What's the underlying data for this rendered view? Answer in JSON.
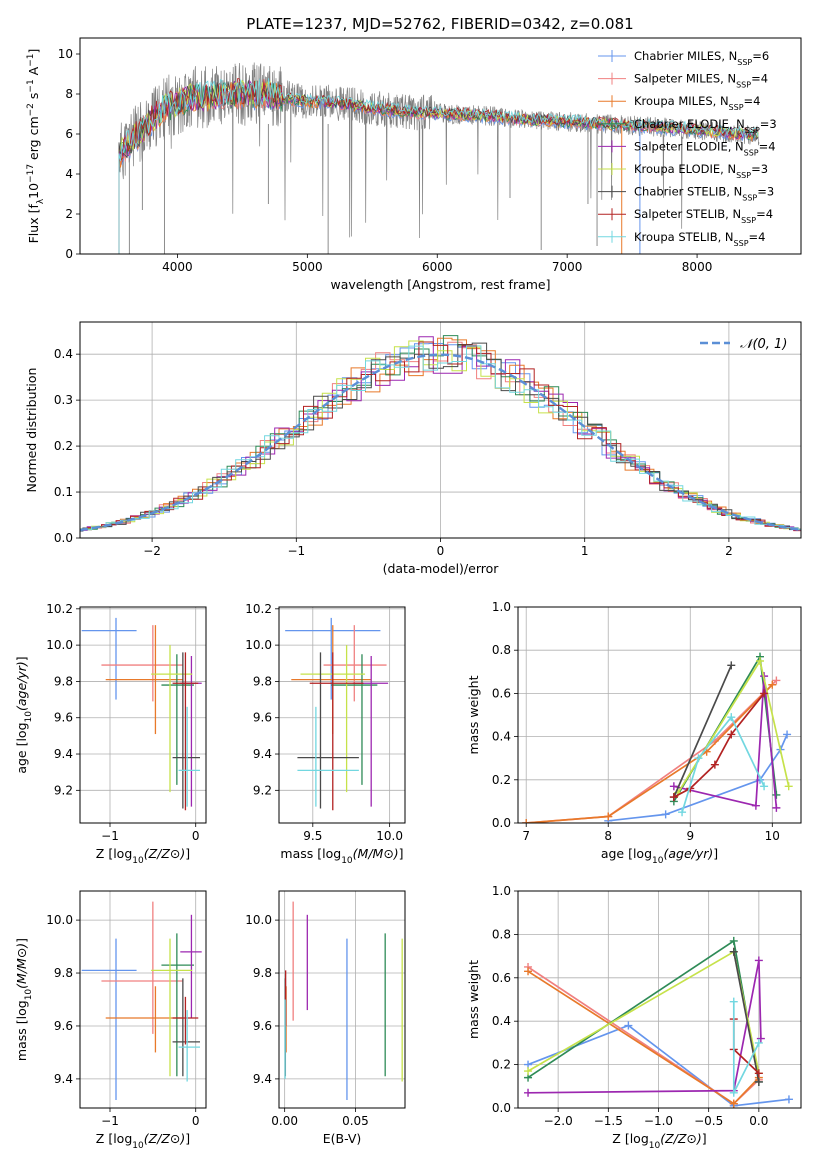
{
  "figure": {
    "title": "PLATE=1237, MJD=52762, FIBERID=0342, z=0.081"
  },
  "colors": {
    "Chabrier MILES": "#6495ed",
    "Salpeter MILES": "#f08080",
    "Kroupa MILES": "#e8792a",
    "Chabrier ELODIE": "#2e8b57",
    "Salpeter ELODIE": "#9c27b0",
    "Kroupa ELODIE": "#c6e24a",
    "Chabrier STELIB": "#4a4a4a",
    "Salpeter STELIB": "#b22222",
    "Kroupa STELIB": "#72d7e0",
    "observed": "#808080",
    "gaussian": "#5b8fd6"
  },
  "chart_data": [
    {
      "id": "spectrum",
      "type": "line",
      "xlabel": "wavelength [Angstrom, rest frame]",
      "ylabel": "Flux [f_λ10^−17 erg cm^−2 s^−1 A^−1]",
      "xlim": [
        3250,
        8800
      ],
      "ylim": [
        0,
        10.8
      ],
      "xticks": [
        4000,
        5000,
        6000,
        7000,
        8000
      ],
      "yticks": [
        0,
        2,
        4,
        6,
        8,
        10
      ],
      "grid": false,
      "legend_position": "top-right",
      "legend": [
        {
          "name": "Chabrier MILES",
          "nssp": "6"
        },
        {
          "name": "Salpeter MILES",
          "nssp": "4"
        },
        {
          "name": "Kroupa MILES",
          "nssp": "4"
        },
        {
          "name": "Chabrier ELODIE",
          "nssp": "3"
        },
        {
          "name": "Salpeter ELODIE",
          "nssp": "4"
        },
        {
          "name": "Kroupa ELODIE",
          "nssp": "3"
        },
        {
          "name": "Chabrier STELIB",
          "nssp": "3"
        },
        {
          "name": "Salpeter STELIB",
          "nssp": "4"
        },
        {
          "name": "Kroupa STELIB",
          "nssp": "4"
        }
      ],
      "continuum": [
        [
          3550,
          5.0
        ],
        [
          3700,
          6.0
        ],
        [
          3900,
          7.3
        ],
        [
          4100,
          7.8
        ],
        [
          4300,
          7.9
        ],
        [
          4500,
          8.0
        ],
        [
          4700,
          8.0
        ],
        [
          4900,
          7.7
        ],
        [
          5100,
          7.6
        ],
        [
          5300,
          7.5
        ],
        [
          5500,
          7.3
        ],
        [
          5800,
          7.1
        ],
        [
          6100,
          7.0
        ],
        [
          6400,
          6.9
        ],
        [
          6700,
          6.7
        ],
        [
          7000,
          6.6
        ],
        [
          7300,
          6.5
        ],
        [
          7600,
          6.4
        ],
        [
          8000,
          6.2
        ],
        [
          8500,
          5.9
        ]
      ]
    },
    {
      "id": "residuals",
      "type": "histogram",
      "xlabel": "(data-model)/error",
      "ylabel": "Normed distribution",
      "xlim": [
        -2.5,
        2.5
      ],
      "ylim": [
        0,
        0.47
      ],
      "xticks": [
        -2,
        -1,
        0,
        1,
        2
      ],
      "yticks": [
        0.0,
        0.1,
        0.2,
        0.3,
        0.4
      ],
      "grid": true,
      "legend_position": "top-right",
      "legend": [
        "𝒩(0, 1)"
      ],
      "bin_width": 0.1,
      "gaussian": {
        "mean": 0,
        "sigma": 1
      }
    },
    {
      "id": "age-vs-Z",
      "type": "errorbar",
      "xlabel": "Z [log10(Z/Z⊙)]",
      "ylabel": "age [log10(age/yr)]",
      "xlim": [
        -1.35,
        0.12
      ],
      "ylim": [
        9.02,
        10.21
      ],
      "xticks": [
        -1,
        0
      ],
      "yticks": [
        9.2,
        9.4,
        9.6,
        9.8,
        10.0,
        10.2
      ],
      "points": [
        {
          "model": "Chabrier MILES",
          "x": -0.93,
          "y": 10.08,
          "xerr": [
            0.4,
            0.24
          ],
          "yerr": [
            0.38,
            0.07
          ]
        },
        {
          "model": "Salpeter MILES",
          "x": -0.5,
          "y": 9.89,
          "xerr": [
            0.6,
            0.35
          ],
          "yerr": [
            0.2,
            0.22
          ]
        },
        {
          "model": "Kroupa MILES",
          "x": -0.47,
          "y": 9.81,
          "xerr": [
            0.58,
            0.32
          ],
          "yerr": [
            0.3,
            0.3
          ]
        },
        {
          "model": "Chabrier ELODIE",
          "x": -0.22,
          "y": 9.78,
          "xerr": [
            0.18,
            0.2
          ],
          "yerr": [
            0.55,
            0.17
          ]
        },
        {
          "model": "Salpeter ELODIE",
          "x": -0.05,
          "y": 9.79,
          "xerr": [
            0.13,
            0.12
          ],
          "yerr": [
            0.68,
            0.15
          ]
        },
        {
          "model": "Kroupa ELODIE",
          "x": -0.3,
          "y": 9.84,
          "xerr": [
            0.22,
            0.26
          ],
          "yerr": [
            0.65,
            0.16
          ]
        },
        {
          "model": "Chabrier STELIB",
          "x": -0.15,
          "y": 9.38,
          "xerr": [
            0.12,
            0.2
          ],
          "yerr": [
            0.28,
            0.58
          ]
        },
        {
          "model": "Salpeter STELIB",
          "x": -0.12,
          "y": 9.79,
          "xerr": [
            0.15,
            0.15
          ],
          "yerr": [
            0.7,
            0.17
          ]
        },
        {
          "model": "Kroupa STELIB",
          "x": -0.1,
          "y": 9.31,
          "xerr": [
            0.1,
            0.15
          ],
          "yerr": [
            0.2,
            0.35
          ]
        }
      ]
    },
    {
      "id": "age-vs-mass",
      "type": "errorbar",
      "xlabel": "mass [log10(M/M⊙)]",
      "ylabel": "",
      "xlim": [
        9.28,
        10.1
      ],
      "ylim": [
        9.02,
        10.21
      ],
      "xticks": [
        9.5,
        10.0
      ],
      "yticks": [
        9.2,
        9.4,
        9.6,
        9.8,
        10.0,
        10.2
      ],
      "points": [
        {
          "model": "Chabrier MILES",
          "x": 9.62,
          "y": 10.08,
          "xerr": [
            0.3,
            0.32
          ],
          "yerr": [
            0.38,
            0.07
          ]
        },
        {
          "model": "Salpeter MILES",
          "x": 9.77,
          "y": 9.89,
          "xerr": [
            0.2,
            0.21
          ],
          "yerr": [
            0.2,
            0.22
          ]
        },
        {
          "model": "Kroupa MILES",
          "x": 9.63,
          "y": 9.81,
          "xerr": [
            0.27,
            0.25
          ],
          "yerr": [
            0.3,
            0.3
          ]
        },
        {
          "model": "Chabrier ELODIE",
          "x": 9.82,
          "y": 9.78,
          "xerr": [
            0.2,
            0.1
          ],
          "yerr": [
            0.55,
            0.17
          ]
        },
        {
          "model": "Salpeter ELODIE",
          "x": 9.88,
          "y": 9.79,
          "xerr": [
            0.12,
            0.11
          ],
          "yerr": [
            0.68,
            0.15
          ]
        },
        {
          "model": "Kroupa ELODIE",
          "x": 9.72,
          "y": 9.84,
          "xerr": [
            0.3,
            0.12
          ],
          "yerr": [
            0.65,
            0.16
          ]
        },
        {
          "model": "Chabrier STELIB",
          "x": 9.55,
          "y": 9.38,
          "xerr": [
            0.15,
            0.25
          ],
          "yerr": [
            0.28,
            0.58
          ]
        },
        {
          "model": "Salpeter STELIB",
          "x": 9.63,
          "y": 9.79,
          "xerr": [
            0.15,
            0.2
          ],
          "yerr": [
            0.7,
            0.17
          ]
        },
        {
          "model": "Kroupa STELIB",
          "x": 9.52,
          "y": 9.31,
          "xerr": [
            0.12,
            0.28
          ],
          "yerr": [
            0.2,
            0.35
          ]
        }
      ]
    },
    {
      "id": "weight-vs-age",
      "type": "line",
      "xlabel": "age [log10(age/yr)]",
      "ylabel": "mass weight",
      "xlim": [
        6.9,
        10.35
      ],
      "ylim": [
        0,
        1.0
      ],
      "xticks": [
        7,
        8,
        9,
        10
      ],
      "yticks": [
        0.0,
        0.2,
        0.4,
        0.6,
        0.8,
        1.0
      ],
      "series": [
        {
          "model": "Chabrier MILES",
          "points": [
            [
              8.0,
              0.01
            ],
            [
              8.7,
              0.04
            ],
            [
              9.85,
              0.2
            ],
            [
              10.1,
              0.34
            ],
            [
              10.18,
              0.41
            ]
          ]
        },
        {
          "model": "Salpeter MILES",
          "points": [
            [
              7.0,
              0.0
            ],
            [
              8.0,
              0.03
            ],
            [
              9.3,
              0.38
            ],
            [
              10.05,
              0.66
            ]
          ]
        },
        {
          "model": "Kroupa MILES",
          "points": [
            [
              7.0,
              0.0
            ],
            [
              8.0,
              0.03
            ],
            [
              9.2,
              0.33
            ],
            [
              10.0,
              0.64
            ]
          ]
        },
        {
          "model": "Chabrier ELODIE",
          "points": [
            [
              8.8,
              0.1
            ],
            [
              9.85,
              0.77
            ],
            [
              10.05,
              0.13
            ]
          ]
        },
        {
          "model": "Salpeter ELODIE",
          "points": [
            [
              8.8,
              0.17
            ],
            [
              9.8,
              0.08
            ],
            [
              9.9,
              0.68
            ],
            [
              10.05,
              0.07
            ]
          ]
        },
        {
          "model": "Kroupa ELODIE",
          "points": [
            [
              8.85,
              0.14
            ],
            [
              9.85,
              0.75
            ],
            [
              10.2,
              0.17
            ]
          ]
        },
        {
          "model": "Chabrier STELIB",
          "points": [
            [
              8.8,
              0.12
            ],
            [
              9.5,
              0.73
            ]
          ]
        },
        {
          "model": "Salpeter STELIB",
          "points": [
            [
              8.8,
              0.12
            ],
            [
              9.0,
              0.16
            ],
            [
              9.3,
              0.27
            ],
            [
              9.5,
              0.41
            ],
            [
              9.9,
              0.6
            ]
          ]
        },
        {
          "model": "Kroupa STELIB",
          "points": [
            [
              8.9,
              0.05
            ],
            [
              9.1,
              0.3
            ],
            [
              9.5,
              0.49
            ],
            [
              9.9,
              0.17
            ]
          ]
        }
      ]
    },
    {
      "id": "mass-vs-Z",
      "type": "errorbar",
      "xlabel": "Z [log10(Z/Z⊙)]",
      "ylabel": "mass [log10(M/M⊙)]",
      "xlim": [
        -1.35,
        0.12
      ],
      "ylim": [
        9.29,
        10.11
      ],
      "xticks": [
        -1,
        0
      ],
      "yticks": [
        9.4,
        9.6,
        9.8,
        10.0
      ],
      "points": [
        {
          "model": "Chabrier MILES",
          "x": -0.93,
          "y": 9.81,
          "xerr": [
            0.4,
            0.24
          ],
          "yerr": [
            0.49,
            0.12
          ]
        },
        {
          "model": "Salpeter MILES",
          "x": -0.5,
          "y": 9.77,
          "xerr": [
            0.6,
            0.35
          ],
          "yerr": [
            0.2,
            0.3
          ]
        },
        {
          "model": "Kroupa MILES",
          "x": -0.47,
          "y": 9.63,
          "xerr": [
            0.58,
            0.32
          ],
          "yerr": [
            0.13,
            0.12
          ]
        },
        {
          "model": "Chabrier ELODIE",
          "x": -0.22,
          "y": 9.83,
          "xerr": [
            0.18,
            0.2
          ],
          "yerr": [
            0.42,
            0.12
          ]
        },
        {
          "model": "Salpeter ELODIE",
          "x": -0.05,
          "y": 9.88,
          "xerr": [
            0.13,
            0.12
          ],
          "yerr": [
            0.25,
            0.14
          ]
        },
        {
          "model": "Kroupa ELODIE",
          "x": -0.3,
          "y": 9.81,
          "xerr": [
            0.22,
            0.26
          ],
          "yerr": [
            0.4,
            0.12
          ]
        },
        {
          "model": "Chabrier STELIB",
          "x": -0.15,
          "y": 9.54,
          "xerr": [
            0.12,
            0.2
          ],
          "yerr": [
            0.13,
            0.24
          ]
        },
        {
          "model": "Salpeter STELIB",
          "x": -0.12,
          "y": 9.63,
          "xerr": [
            0.15,
            0.15
          ],
          "yerr": [
            0.1,
            0.08
          ]
        },
        {
          "model": "Kroupa STELIB",
          "x": -0.1,
          "y": 9.52,
          "xerr": [
            0.1,
            0.15
          ],
          "yerr": [
            0.13,
            0.14
          ]
        }
      ]
    },
    {
      "id": "mass-vs-EBV",
      "type": "errorbar",
      "xlabel": "E(B-V)",
      "ylabel": "",
      "xlim": [
        -0.004,
        0.085
      ],
      "ylim": [
        9.29,
        10.11
      ],
      "xticks": [
        0.0,
        0.05
      ],
      "xtick_labels": [
        "0.00",
        "0.05"
      ],
      "yticks": [
        9.4,
        9.6,
        9.8,
        10.0
      ],
      "points": [
        {
          "model": "Chabrier MILES",
          "x": 0.044,
          "y": 9.81,
          "yerr": [
            0.49,
            0.12
          ]
        },
        {
          "model": "Salpeter MILES",
          "x": 0.006,
          "y": 9.77,
          "yerr": [
            0.15,
            0.3
          ]
        },
        {
          "model": "Kroupa MILES",
          "x": 0.001,
          "y": 9.63,
          "yerr": [
            0.13,
            0.12
          ]
        },
        {
          "model": "Chabrier ELODIE",
          "x": 0.071,
          "y": 9.83,
          "yerr": [
            0.42,
            0.12
          ]
        },
        {
          "model": "Salpeter ELODIE",
          "x": 0.016,
          "y": 9.88,
          "yerr": [
            0.22,
            0.14
          ]
        },
        {
          "model": "Kroupa ELODIE",
          "x": 0.083,
          "y": 9.81,
          "yerr": [
            0.42,
            0.12
          ]
        },
        {
          "model": "Chabrier STELIB",
          "x": 0.0005,
          "y": 9.54,
          "yerr": [
            0.13,
            0.24
          ]
        },
        {
          "model": "Salpeter STELIB",
          "x": 0.0007,
          "y": 9.7,
          "yerr": [
            0.1,
            0.11
          ]
        },
        {
          "model": "Kroupa STELIB",
          "x": 0.0003,
          "y": 9.55,
          "yerr": [
            0.15,
            0.15
          ]
        }
      ]
    },
    {
      "id": "weight-vs-Z",
      "type": "line",
      "xlabel": "Z [log10(Z/Z⊙)]",
      "ylabel": "mass weight",
      "xlim": [
        -2.4,
        0.42
      ],
      "ylim": [
        0,
        1.0
      ],
      "xticks": [
        -2.0,
        -1.5,
        -1.0,
        -0.5,
        0.0
      ],
      "yticks": [
        0.0,
        0.2,
        0.4,
        0.6,
        0.8,
        1.0
      ],
      "series": [
        {
          "model": "Chabrier MILES",
          "points": [
            [
              -2.3,
              0.2
            ],
            [
              -1.3,
              0.38
            ],
            [
              -0.25,
              0.01
            ],
            [
              0.3,
              0.04
            ]
          ]
        },
        {
          "model": "Salpeter MILES",
          "points": [
            [
              -2.3,
              0.65
            ],
            [
              -0.25,
              0.02
            ],
            [
              0.0,
              0.13
            ]
          ]
        },
        {
          "model": "Kroupa MILES",
          "points": [
            [
              -2.3,
              0.63
            ],
            [
              -0.25,
              0.02
            ],
            [
              0.0,
              0.14
            ]
          ]
        },
        {
          "model": "Chabrier ELODIE",
          "points": [
            [
              -2.3,
              0.14
            ],
            [
              -0.25,
              0.77
            ],
            [
              0.0,
              0.12
            ]
          ]
        },
        {
          "model": "Salpeter ELODIE",
          "points": [
            [
              -2.3,
              0.07
            ],
            [
              -0.25,
              0.08
            ],
            [
              0.0,
              0.68
            ],
            [
              0.02,
              0.32
            ]
          ]
        },
        {
          "model": "Kroupa ELODIE",
          "points": [
            [
              -2.3,
              0.17
            ],
            [
              -0.25,
              0.72
            ],
            [
              0.0,
              0.16
            ]
          ]
        },
        {
          "model": "Chabrier STELIB",
          "points": [
            [
              -0.25,
              0.72
            ],
            [
              0.0,
              0.12
            ]
          ]
        },
        {
          "model": "Salpeter STELIB",
          "points": [
            [
              -0.25,
              0.41
            ],
            [
              -0.25,
              0.27
            ],
            [
              0.0,
              0.16
            ]
          ]
        },
        {
          "model": "Kroupa STELIB",
          "points": [
            [
              -0.25,
              0.49
            ],
            [
              -0.25,
              0.07
            ],
            [
              0.0,
              0.3
            ]
          ]
        }
      ]
    }
  ]
}
